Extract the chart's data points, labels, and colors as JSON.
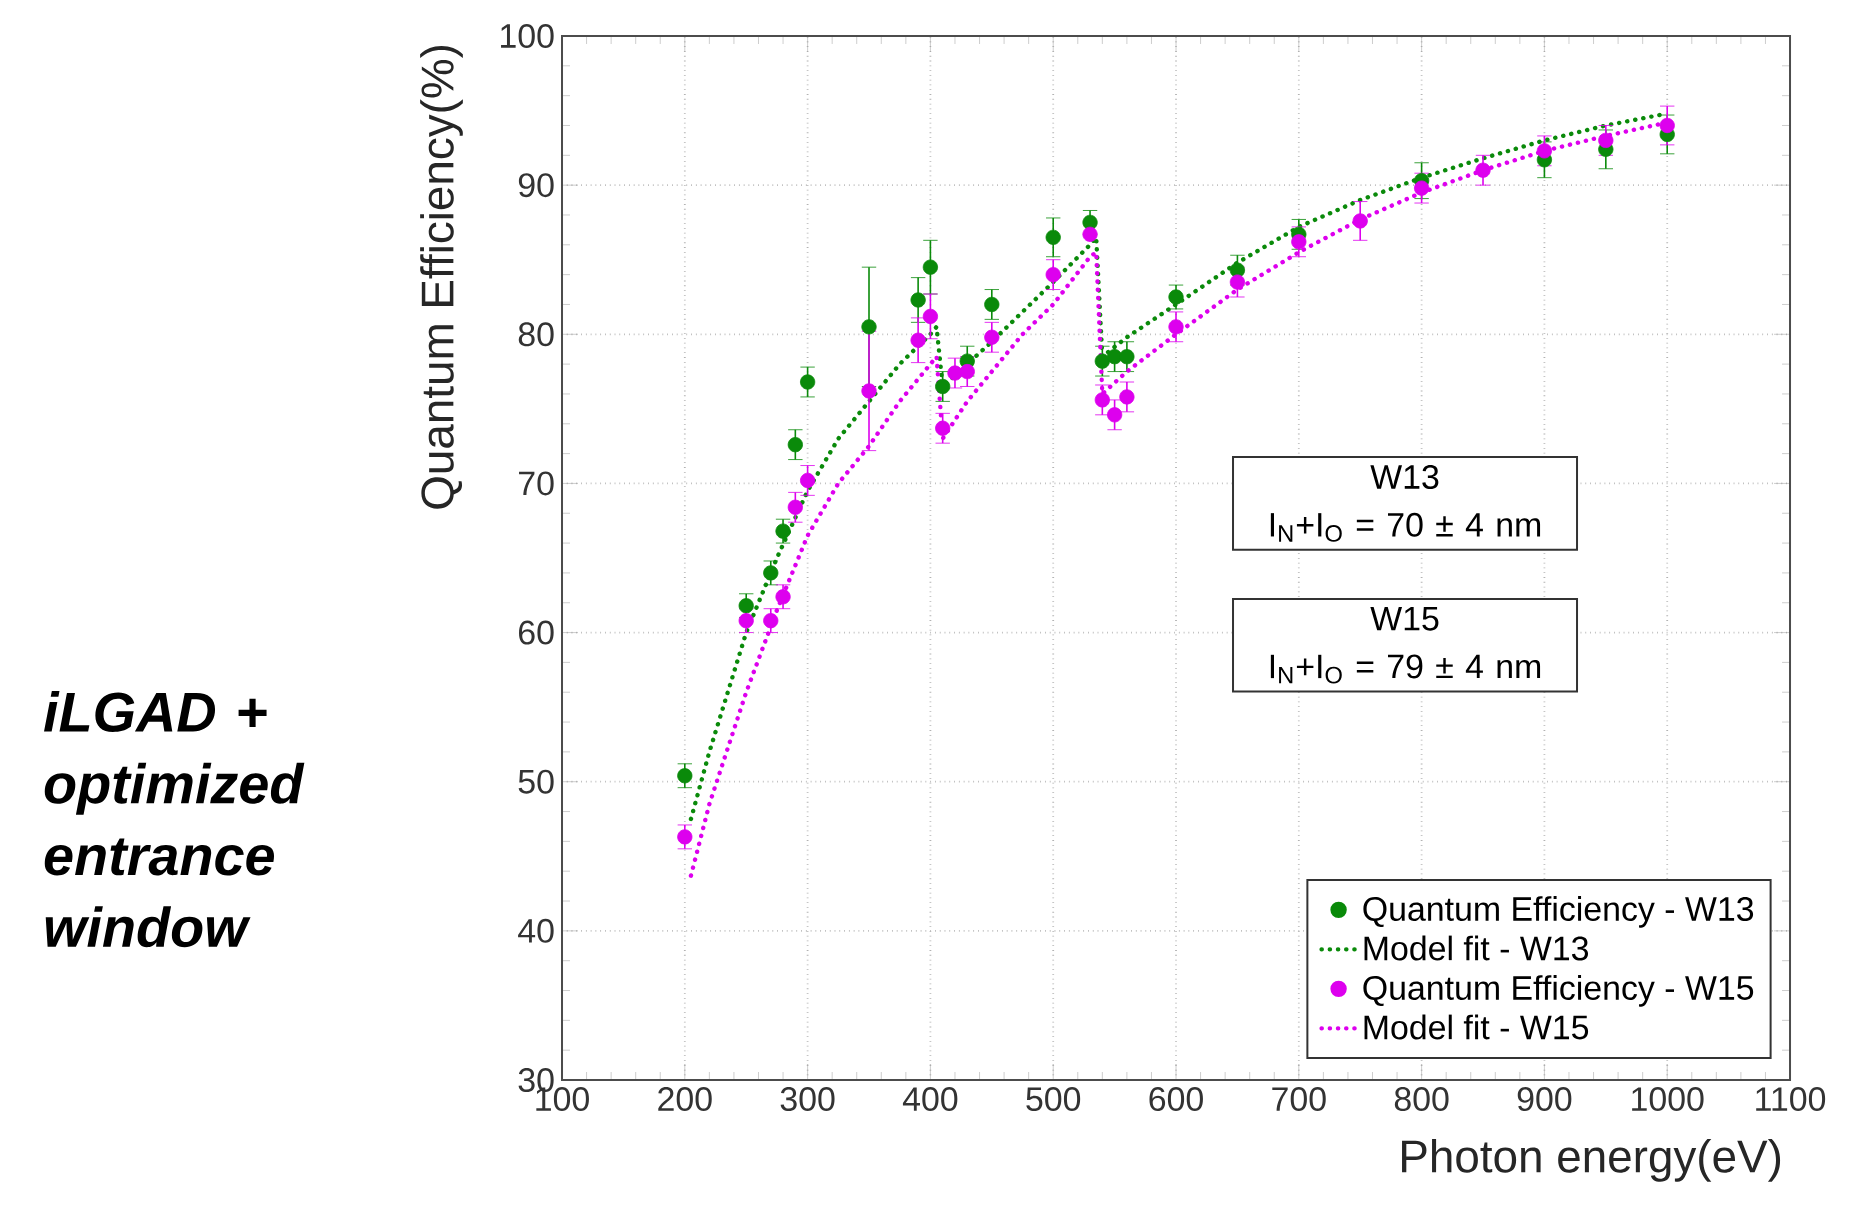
{
  "chart_data": {
    "type": "scatter",
    "xlabel": "Photon energy(eV)",
    "ylabel": "Quantum Efficiency(%)",
    "xlim": [
      100,
      1100
    ],
    "xticks": [
      100,
      200,
      300,
      400,
      500,
      600,
      700,
      800,
      900,
      1000,
      1100
    ],
    "ylim": [
      30,
      100
    ],
    "yticks": [
      30,
      40,
      50,
      60,
      70,
      80,
      90,
      100
    ],
    "grid": true,
    "legend": "bottom right",
    "annotations": [
      "iLGAD + optimized entrance window",
      "W13",
      "I$_{N}$+I$_{O}$ = 70 ±  4 nm",
      "W15",
      "I$_{N}$+I$_{O}$ = 79 ±  4 nm"
    ],
    "series": [
      {
        "name": "Quantum Efficiency - W13",
        "marker": "circle",
        "color": "#0a8a0a",
        "x": [
          200,
          250,
          270,
          280,
          290,
          300,
          350,
          390,
          400,
          410,
          420,
          430,
          450,
          500,
          530,
          540,
          550,
          560,
          600,
          650,
          700,
          750,
          800,
          850,
          900,
          950,
          1000
        ],
        "values": [
          50.4,
          61.8,
          64,
          66.8,
          72.6,
          76.8,
          80.5,
          82.3,
          84.5,
          76.5,
          null,
          78.2,
          82,
          86.5,
          87.5,
          78.2,
          78.5,
          78.5,
          82.5,
          84.3,
          86.7,
          null,
          90.3,
          null,
          91.7,
          92.4,
          93.4
        ],
        "errors": [
          0.8,
          0.8,
          0.8,
          0.8,
          1,
          1,
          4,
          1.5,
          1.8,
          1,
          null,
          1,
          1,
          1.3,
          0.8,
          1,
          1,
          1,
          0.8,
          1,
          1,
          null,
          1.2,
          null,
          1.2,
          1.3,
          1.3
        ]
      },
      {
        "name": "Model fit - W13",
        "type": "line",
        "line_style": "dotted",
        "marker": "none",
        "color": "#0a8a0a",
        "x": [
          205,
          220,
          250,
          275,
          300,
          325,
          350,
          375,
          400,
          405,
          410,
          430,
          450,
          475,
          500,
          530,
          535,
          540,
          560,
          600,
          650,
          700,
          750,
          800,
          850,
          900,
          950,
          1000
        ],
        "values": [
          47.5,
          52,
          60,
          65,
          69.5,
          73,
          75.5,
          78,
          80,
          80.5,
          76.5,
          78,
          79.5,
          81.5,
          83.5,
          86,
          86.5,
          78.5,
          79.8,
          82,
          84.8,
          87.2,
          89,
          90.5,
          91.8,
          93,
          94,
          94.8
        ]
      },
      {
        "name": "Quantum Efficiency - W15",
        "marker": "circle",
        "color": "#dd00ee",
        "x": [
          200,
          250,
          270,
          280,
          290,
          300,
          350,
          390,
          400,
          410,
          420,
          430,
          450,
          500,
          530,
          540,
          550,
          560,
          600,
          650,
          700,
          750,
          800,
          850,
          900,
          950,
          1000
        ],
        "values": [
          46.3,
          60.8,
          60.8,
          62.4,
          68.4,
          70.2,
          76.2,
          79.6,
          81.2,
          73.7,
          77.4,
          77.5,
          79.8,
          84,
          86.7,
          75.6,
          74.6,
          75.8,
          80.5,
          83.5,
          86.2,
          87.6,
          89.8,
          91,
          92.3,
          93,
          94
        ],
        "errors": [
          0.8,
          0.8,
          0.8,
          0.8,
          1,
          1,
          4,
          1.5,
          1.5,
          1,
          1,
          1,
          1,
          1,
          null,
          1,
          1,
          1,
          1,
          1,
          1,
          1.3,
          1,
          1,
          1,
          1,
          1.3
        ]
      },
      {
        "name": "Model fit - W15",
        "type": "line",
        "line_style": "dotted",
        "marker": "none",
        "color": "#dd00ee",
        "x": [
          205,
          220,
          250,
          275,
          300,
          325,
          350,
          375,
          400,
          405,
          410,
          430,
          450,
          475,
          500,
          530,
          535,
          540,
          560,
          600,
          650,
          700,
          750,
          800,
          850,
          900,
          950,
          1000
        ],
        "values": [
          43.7,
          48.5,
          56,
          61.5,
          66.5,
          70,
          72.5,
          75.5,
          78,
          78.5,
          73,
          75.5,
          77.5,
          80,
          82,
          85.2,
          85.5,
          76,
          77.5,
          80,
          83,
          85.5,
          87.7,
          89.5,
          91,
          92.3,
          93.3,
          94.2
        ]
      }
    ]
  }
}
